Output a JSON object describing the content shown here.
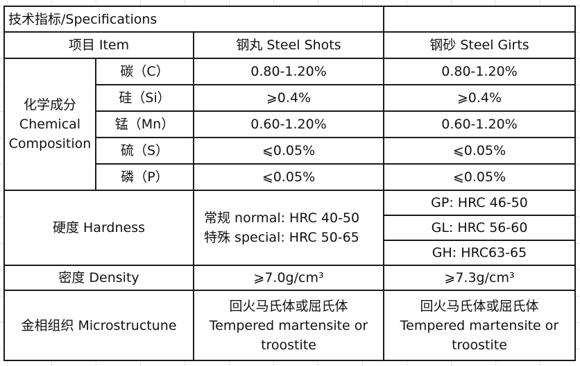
{
  "title": "技术指标/Specifications",
  "header": {
    "item": "项目 Item",
    "shots": "钢丸 Steel Shots",
    "grits": "钢砂 Steel Girts"
  },
  "chemical": {
    "label_cn": "化学成分",
    "label_en1": "Chemical",
    "label_en2": "Composition",
    "rows": [
      {
        "element": "碳（C）",
        "shots": "0.80-1.20%",
        "grits": "0.80-1.20%"
      },
      {
        "element": "硅（Si）",
        "shots": "⩾0.4%",
        "grits": "⩾0.4%"
      },
      {
        "element": "锰（Mn）",
        "shots": "0.60-1.20%",
        "grits": "0.60-1.20%"
      },
      {
        "element": "硫（S）",
        "shots": "⩽0.05%",
        "grits": "⩽0.05%"
      },
      {
        "element": "磷（P）",
        "shots": "⩽0.05%",
        "grits": "⩽0.05%"
      }
    ]
  },
  "hardness": {
    "label": "硬度 Hardness",
    "shots_normal": "常规 normal:  HRC 40-50",
    "shots_special": "特殊 special:   HRC 50-65",
    "grits": [
      "GP: HRC 46-50",
      "GL: HRC 56-60",
      "GH: HRC63-65"
    ]
  },
  "density": {
    "label": "密度 Density",
    "shots": "⩾7.0g/cm³",
    "grits": "⩾7.3g/cm³"
  },
  "microstructure": {
    "label": "金相组织 Microstructune",
    "shots_cn": "回火马氏体或屈氏体",
    "shots_en1": "Tempered martensite or",
    "shots_en2": "troostite",
    "grits_cn": "回火马氏体或屈氏体",
    "grits_en1": "Tempered martensite or",
    "grits_en2": "troostite"
  }
}
